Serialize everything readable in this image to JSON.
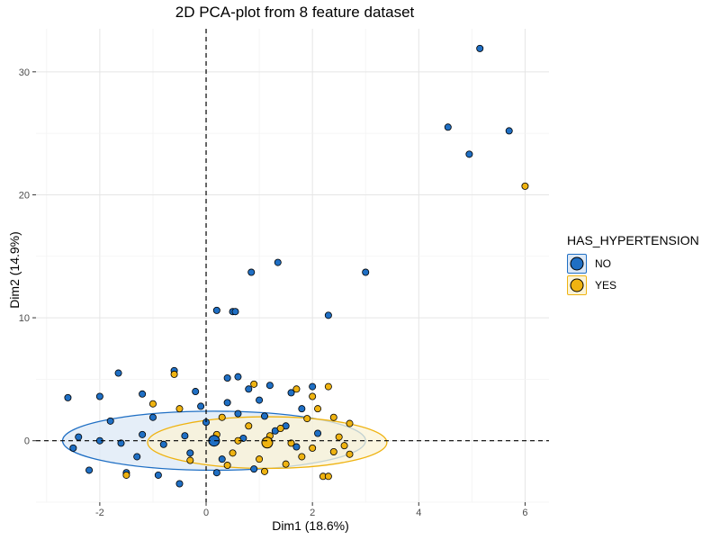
{
  "chart_data": {
    "type": "scatter",
    "title": "2D PCA-plot from 8 feature dataset",
    "xlabel": "Dim1 (18.6%)",
    "ylabel": "Dim2 (14.9%)",
    "xlim": [
      -3.2,
      6.45
    ],
    "ylim": [
      -5.0,
      33.5
    ],
    "x_ticks": [
      -2,
      0,
      2,
      4,
      6
    ],
    "y_ticks": [
      0,
      10,
      20,
      30
    ],
    "grid": true,
    "reference_lines": {
      "x": 0,
      "y": 0,
      "style": "dashed"
    },
    "legend": {
      "title": "HAS_HYPERTENSION",
      "position": "right",
      "items": [
        {
          "label": "NO",
          "color": "#1F6FC4"
        },
        {
          "label": "YES",
          "color": "#EFB311"
        }
      ]
    },
    "series": [
      {
        "name": "NO",
        "color": "#1F6FC4",
        "points": [
          [
            5.15,
            31.9
          ],
          [
            4.55,
            25.5
          ],
          [
            5.7,
            25.2
          ],
          [
            4.95,
            23.3
          ],
          [
            1.35,
            14.5
          ],
          [
            0.85,
            13.7
          ],
          [
            3.0,
            13.7
          ],
          [
            0.2,
            10.6
          ],
          [
            0.5,
            10.5
          ],
          [
            0.55,
            10.5
          ],
          [
            2.3,
            10.2
          ],
          [
            -1.65,
            5.5
          ],
          [
            -0.6,
            5.7
          ],
          [
            0.4,
            5.1
          ],
          [
            0.6,
            5.2
          ],
          [
            1.2,
            4.5
          ],
          [
            2.0,
            4.4
          ],
          [
            -2.6,
            3.5
          ],
          [
            -2.0,
            3.6
          ],
          [
            -1.2,
            3.8
          ],
          [
            -0.2,
            4.0
          ],
          [
            0.8,
            4.2
          ],
          [
            1.6,
            3.9
          ],
          [
            -2.4,
            0.3
          ],
          [
            -2.0,
            0.0
          ],
          [
            -1.6,
            -0.2
          ],
          [
            -1.2,
            0.5
          ],
          [
            -0.8,
            -0.3
          ],
          [
            -0.4,
            0.4
          ],
          [
            -2.2,
            -2.4
          ],
          [
            -1.5,
            -2.6
          ],
          [
            -0.9,
            -2.8
          ],
          [
            -0.5,
            -3.5
          ],
          [
            0.2,
            -2.6
          ],
          [
            0.9,
            -2.3
          ],
          [
            -1.8,
            1.6
          ],
          [
            -1.0,
            1.9
          ],
          [
            0.0,
            1.5
          ],
          [
            0.6,
            2.2
          ],
          [
            1.1,
            2.0
          ],
          [
            1.5,
            1.2
          ],
          [
            -0.3,
            -1.0
          ],
          [
            0.3,
            -1.5
          ],
          [
            0.7,
            0.2
          ],
          [
            1.3,
            0.8
          ],
          [
            1.7,
            -0.5
          ],
          [
            2.1,
            0.6
          ],
          [
            -1.3,
            -1.3
          ],
          [
            -2.5,
            -0.6
          ],
          [
            -0.1,
            2.8
          ],
          [
            0.4,
            3.1
          ],
          [
            1.0,
            3.3
          ],
          [
            1.8,
            2.6
          ]
        ]
      },
      {
        "name": "YES",
        "color": "#EFB311",
        "points": [
          [
            6.0,
            20.7
          ],
          [
            -0.6,
            5.4
          ],
          [
            0.9,
            4.6
          ],
          [
            1.7,
            4.2
          ],
          [
            2.3,
            4.4
          ],
          [
            2.0,
            3.6
          ],
          [
            -1.0,
            3.0
          ],
          [
            -0.5,
            2.6
          ],
          [
            2.1,
            2.6
          ],
          [
            2.4,
            1.9
          ],
          [
            2.7,
            1.4
          ],
          [
            0.8,
            1.2
          ],
          [
            1.2,
            0.4
          ],
          [
            1.6,
            -0.2
          ],
          [
            2.0,
            -0.6
          ],
          [
            2.4,
            -0.9
          ],
          [
            2.7,
            -1.1
          ],
          [
            0.5,
            -1.0
          ],
          [
            1.0,
            -1.5
          ],
          [
            1.5,
            -1.9
          ],
          [
            2.2,
            -2.9
          ],
          [
            2.3,
            -2.9
          ],
          [
            -0.3,
            -1.6
          ],
          [
            0.2,
            0.5
          ],
          [
            0.6,
            0.0
          ],
          [
            1.4,
            1.0
          ],
          [
            1.9,
            1.8
          ],
          [
            2.5,
            0.3
          ],
          [
            -1.5,
            -2.8
          ],
          [
            0.4,
            -2.0
          ],
          [
            1.1,
            -2.5
          ],
          [
            1.8,
            -1.3
          ],
          [
            0.3,
            1.9
          ],
          [
            2.6,
            -0.4
          ]
        ]
      }
    ],
    "ellipses": [
      {
        "series": "NO",
        "center": [
          0.15,
          0.0
        ],
        "fill": "#DCE8F6",
        "stroke": "#1F6FC4"
      },
      {
        "series": "YES",
        "center": [
          1.15,
          -0.15
        ],
        "fill": "#FBF3D6",
        "stroke": "#EFB311"
      }
    ]
  }
}
